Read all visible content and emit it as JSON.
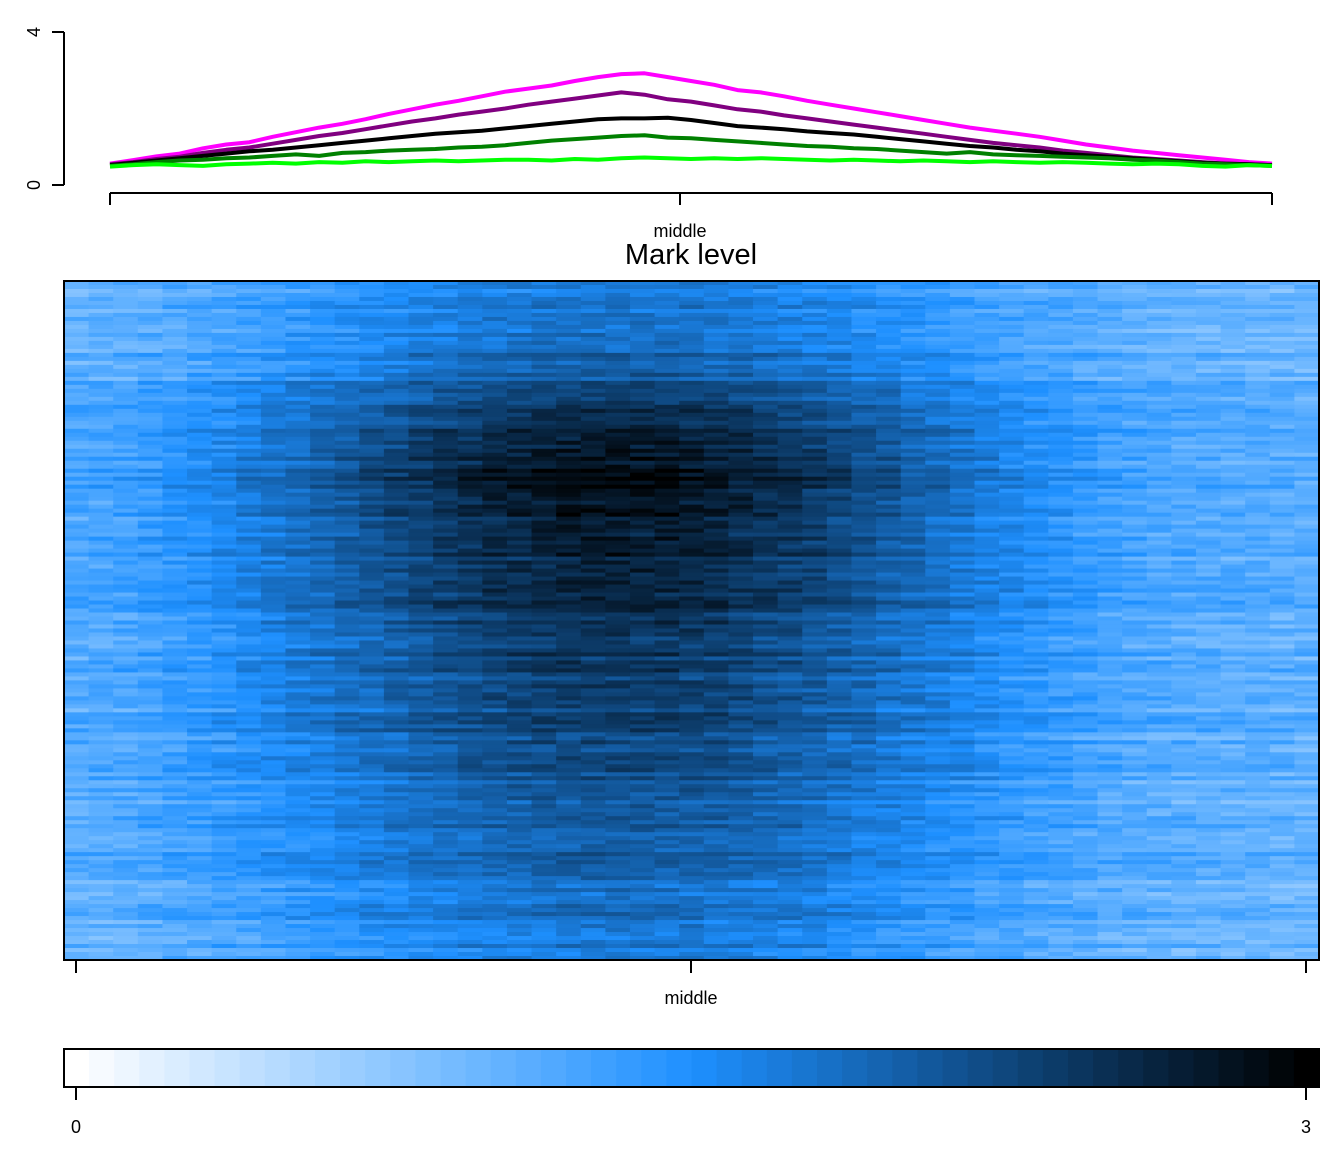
{
  "chart_data": [
    {
      "type": "line",
      "title": "",
      "xlabel": "",
      "ylabel": "",
      "ylim": [
        0,
        4
      ],
      "y_ticks": [
        "0",
        "4"
      ],
      "x_ticks": [
        "",
        "middle",
        ""
      ],
      "x": [
        0,
        1,
        2,
        3,
        4,
        5,
        6,
        7,
        8,
        9,
        10,
        11,
        12,
        13,
        14,
        15,
        16,
        17,
        18,
        19,
        20,
        21,
        22,
        23,
        24,
        25,
        26,
        27,
        28,
        29,
        30,
        31,
        32,
        33,
        34,
        35,
        36,
        37,
        38,
        39,
        40,
        41,
        42,
        43,
        44,
        45,
        46,
        47,
        48,
        49,
        50
      ],
      "grid": false,
      "legend": "none",
      "series": [
        {
          "color": "#ff00ff",
          "values": [
            0.56,
            0.65,
            0.75,
            0.82,
            0.96,
            1.06,
            1.12,
            1.26,
            1.38,
            1.5,
            1.6,
            1.72,
            1.86,
            1.98,
            2.1,
            2.2,
            2.32,
            2.44,
            2.52,
            2.6,
            2.72,
            2.82,
            2.9,
            2.92,
            2.82,
            2.72,
            2.62,
            2.48,
            2.42,
            2.32,
            2.2,
            2.1,
            2.0,
            1.9,
            1.8,
            1.7,
            1.6,
            1.5,
            1.42,
            1.34,
            1.26,
            1.16,
            1.06,
            0.98,
            0.9,
            0.84,
            0.78,
            0.72,
            0.66,
            0.6,
            0.56
          ]
        },
        {
          "color": "#800080",
          "values": [
            0.54,
            0.6,
            0.68,
            0.74,
            0.84,
            0.92,
            0.98,
            1.08,
            1.18,
            1.28,
            1.36,
            1.46,
            1.56,
            1.66,
            1.74,
            1.84,
            1.92,
            2.0,
            2.1,
            2.18,
            2.26,
            2.34,
            2.42,
            2.36,
            2.24,
            2.18,
            2.08,
            1.98,
            1.92,
            1.82,
            1.74,
            1.66,
            1.58,
            1.5,
            1.42,
            1.34,
            1.26,
            1.18,
            1.1,
            1.04,
            0.98,
            0.9,
            0.84,
            0.78,
            0.72,
            0.68,
            0.64,
            0.6,
            0.56,
            0.54,
            0.52
          ]
        },
        {
          "color": "#000000",
          "values": [
            0.52,
            0.58,
            0.64,
            0.7,
            0.76,
            0.82,
            0.88,
            0.92,
            0.98,
            1.04,
            1.1,
            1.16,
            1.22,
            1.28,
            1.34,
            1.38,
            1.42,
            1.48,
            1.54,
            1.6,
            1.66,
            1.72,
            1.74,
            1.74,
            1.76,
            1.7,
            1.62,
            1.54,
            1.5,
            1.46,
            1.4,
            1.36,
            1.32,
            1.26,
            1.2,
            1.14,
            1.08,
            1.02,
            0.98,
            0.92,
            0.88,
            0.82,
            0.78,
            0.74,
            0.7,
            0.66,
            0.62,
            0.58,
            0.56,
            0.54,
            0.52
          ]
        },
        {
          "color": "#008000",
          "values": [
            0.5,
            0.54,
            0.6,
            0.64,
            0.66,
            0.7,
            0.72,
            0.76,
            0.8,
            0.76,
            0.84,
            0.86,
            0.9,
            0.92,
            0.94,
            0.98,
            1.0,
            1.04,
            1.1,
            1.16,
            1.2,
            1.24,
            1.28,
            1.3,
            1.24,
            1.22,
            1.18,
            1.14,
            1.1,
            1.06,
            1.02,
            1.0,
            0.96,
            0.94,
            0.9,
            0.86,
            0.82,
            0.86,
            0.8,
            0.78,
            0.76,
            0.74,
            0.72,
            0.7,
            0.66,
            0.64,
            0.6,
            0.56,
            0.54,
            0.52,
            0.5
          ]
        },
        {
          "color": "#00ff00",
          "values": [
            0.48,
            0.52,
            0.54,
            0.52,
            0.5,
            0.54,
            0.56,
            0.58,
            0.56,
            0.6,
            0.58,
            0.62,
            0.6,
            0.62,
            0.64,
            0.62,
            0.64,
            0.66,
            0.66,
            0.64,
            0.68,
            0.66,
            0.7,
            0.72,
            0.7,
            0.68,
            0.7,
            0.68,
            0.7,
            0.68,
            0.66,
            0.64,
            0.66,
            0.64,
            0.62,
            0.64,
            0.62,
            0.6,
            0.62,
            0.6,
            0.58,
            0.6,
            0.58,
            0.56,
            0.54,
            0.56,
            0.54,
            0.5,
            0.48,
            0.52,
            0.5
          ]
        }
      ]
    },
    {
      "type": "heatmap",
      "title": "Mark level",
      "xlabel": "",
      "ylabel": "",
      "x_ticks": [
        "",
        "middle",
        ""
      ],
      "n_columns": 51,
      "n_rows": 170,
      "value_range": [
        0,
        3
      ],
      "row_profile": [
        0.08,
        0.12,
        0.18,
        0.28,
        0.4,
        0.55,
        0.72,
        0.9,
        1.0,
        0.98,
        0.92,
        0.85,
        0.8,
        0.76,
        0.72,
        0.68,
        0.64,
        0.6,
        0.56,
        0.52,
        0.48,
        0.44,
        0.4,
        0.35,
        0.3,
        0.26,
        0.22,
        0.18,
        0.14,
        0.1
      ],
      "column_profile": [
        0.18,
        0.2,
        0.22,
        0.26,
        0.3,
        0.34,
        0.38,
        0.43,
        0.48,
        0.53,
        0.58,
        0.63,
        0.68,
        0.73,
        0.78,
        0.82,
        0.86,
        0.9,
        0.93,
        0.96,
        0.98,
        0.99,
        1.0,
        0.99,
        0.98,
        0.96,
        0.93,
        0.9,
        0.86,
        0.82,
        0.78,
        0.73,
        0.68,
        0.63,
        0.58,
        0.53,
        0.48,
        0.43,
        0.38,
        0.34,
        0.3,
        0.26,
        0.22,
        0.2,
        0.18,
        0.17,
        0.16,
        0.15,
        0.14,
        0.13,
        0.12
      ],
      "colors": [
        "#ffffff",
        "#1e90ff",
        "#000000"
      ]
    },
    {
      "type": "colorbar",
      "range": [
        0,
        3
      ],
      "n_steps": 50,
      "tick_labels": [
        "0",
        "3"
      ],
      "colors": [
        "#ffffff",
        "#1e90ff",
        "#000000"
      ]
    }
  ]
}
